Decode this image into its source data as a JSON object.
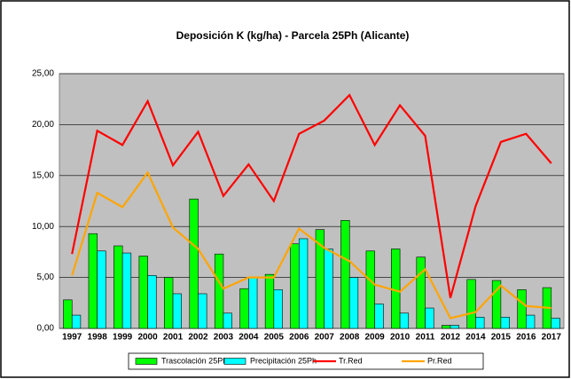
{
  "chart_data": {
    "type": "bar",
    "title": "Deposición K (kg/ha) - Parcela 25Ph (Alicante)",
    "categories": [
      "1997",
      "1998",
      "1999",
      "2000",
      "2001",
      "2002",
      "2003",
      "2004",
      "2005",
      "2006",
      "2007",
      "2008",
      "2009",
      "2010",
      "2011",
      "2012",
      "2014",
      "2015",
      "2016",
      "2017"
    ],
    "series": [
      {
        "name": "Trascolación  25Ph",
        "type": "bar",
        "color": "#00ff00",
        "values": [
          2.8,
          9.3,
          8.1,
          7.1,
          5.0,
          12.7,
          7.3,
          3.9,
          5.3,
          8.3,
          9.7,
          10.6,
          7.6,
          7.8,
          7.0,
          0.3,
          4.8,
          4.7,
          3.8,
          4.0
        ]
      },
      {
        "name": "Precipitación 25Ph",
        "type": "bar",
        "color": "#00ffff",
        "values": [
          1.3,
          7.6,
          7.4,
          5.2,
          3.4,
          3.4,
          1.5,
          5.0,
          3.8,
          8.8,
          7.8,
          5.0,
          2.4,
          1.5,
          2.0,
          0.3,
          1.1,
          1.1,
          1.3,
          1.0
        ]
      },
      {
        "name": "Tr.Red",
        "type": "line",
        "color": "#ff0000",
        "values": [
          7.3,
          19.4,
          18.0,
          22.3,
          16.0,
          19.3,
          13.0,
          16.1,
          12.5,
          19.1,
          20.4,
          22.9,
          18.0,
          21.9,
          18.9,
          3.0,
          12.0,
          18.3,
          19.1,
          16.2
        ]
      },
      {
        "name": "Pr.Red",
        "type": "line",
        "color": "#ffa500",
        "values": [
          5.2,
          13.3,
          11.9,
          15.3,
          9.9,
          7.8,
          3.9,
          5.0,
          5.0,
          9.8,
          7.9,
          6.6,
          4.3,
          3.6,
          5.8,
          1.0,
          1.6,
          4.2,
          2.2,
          2.0
        ]
      }
    ],
    "ylim": [
      0,
      25
    ],
    "yticks": [
      {
        "value": 0,
        "label": "0,00"
      },
      {
        "value": 5,
        "label": "5,00"
      },
      {
        "value": 10,
        "label": "10,00"
      },
      {
        "value": 15,
        "label": "15,00"
      },
      {
        "value": 20,
        "label": "20,00"
      },
      {
        "value": 25,
        "label": "25,00"
      }
    ],
    "grid": true,
    "legend": "bottom"
  }
}
